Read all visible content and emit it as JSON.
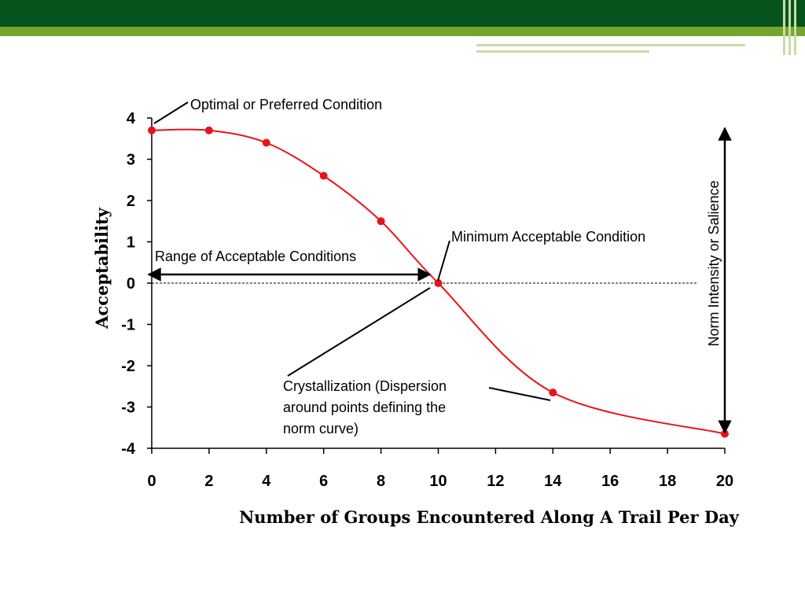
{
  "theme": {
    "header_dark": "#05541d",
    "header_light": "#76a52e",
    "stripe_light": "#c9dba7",
    "curve_color": "#e8141b",
    "point_color": "#e8141b"
  },
  "chart_data": {
    "type": "line",
    "title": "",
    "xlabel": "Number of Groups Encountered Along A Trail Per Day",
    "ylabel": "Acceptability",
    "xlim": [
      0,
      20
    ],
    "ylim": [
      -4,
      4
    ],
    "x_ticks": [
      "0",
      "2",
      "4",
      "6",
      "8",
      "10",
      "12",
      "14",
      "16",
      "18",
      "20"
    ],
    "y_ticks": [
      "4",
      "3",
      "2",
      "1",
      "0",
      "-1",
      "-2",
      "-3",
      "-4"
    ],
    "grid": false,
    "series": [
      {
        "x": [
          0,
          2,
          4,
          6,
          8,
          10,
          14,
          20
        ],
        "y": [
          3.7,
          3.7,
          3.4,
          2.6,
          1.5,
          0.0,
          -2.65,
          -3.65
        ]
      }
    ],
    "annotations": {
      "optimal": "Optimal or Preferred Condition",
      "range": "Range of Acceptable Conditions",
      "minimum": "Minimum Acceptable Condition",
      "crystallization": [
        "Crystallization (Dispersion",
        "around points defining the",
        "norm curve)"
      ],
      "norm_intensity": "Norm Intensity or Salience"
    }
  }
}
